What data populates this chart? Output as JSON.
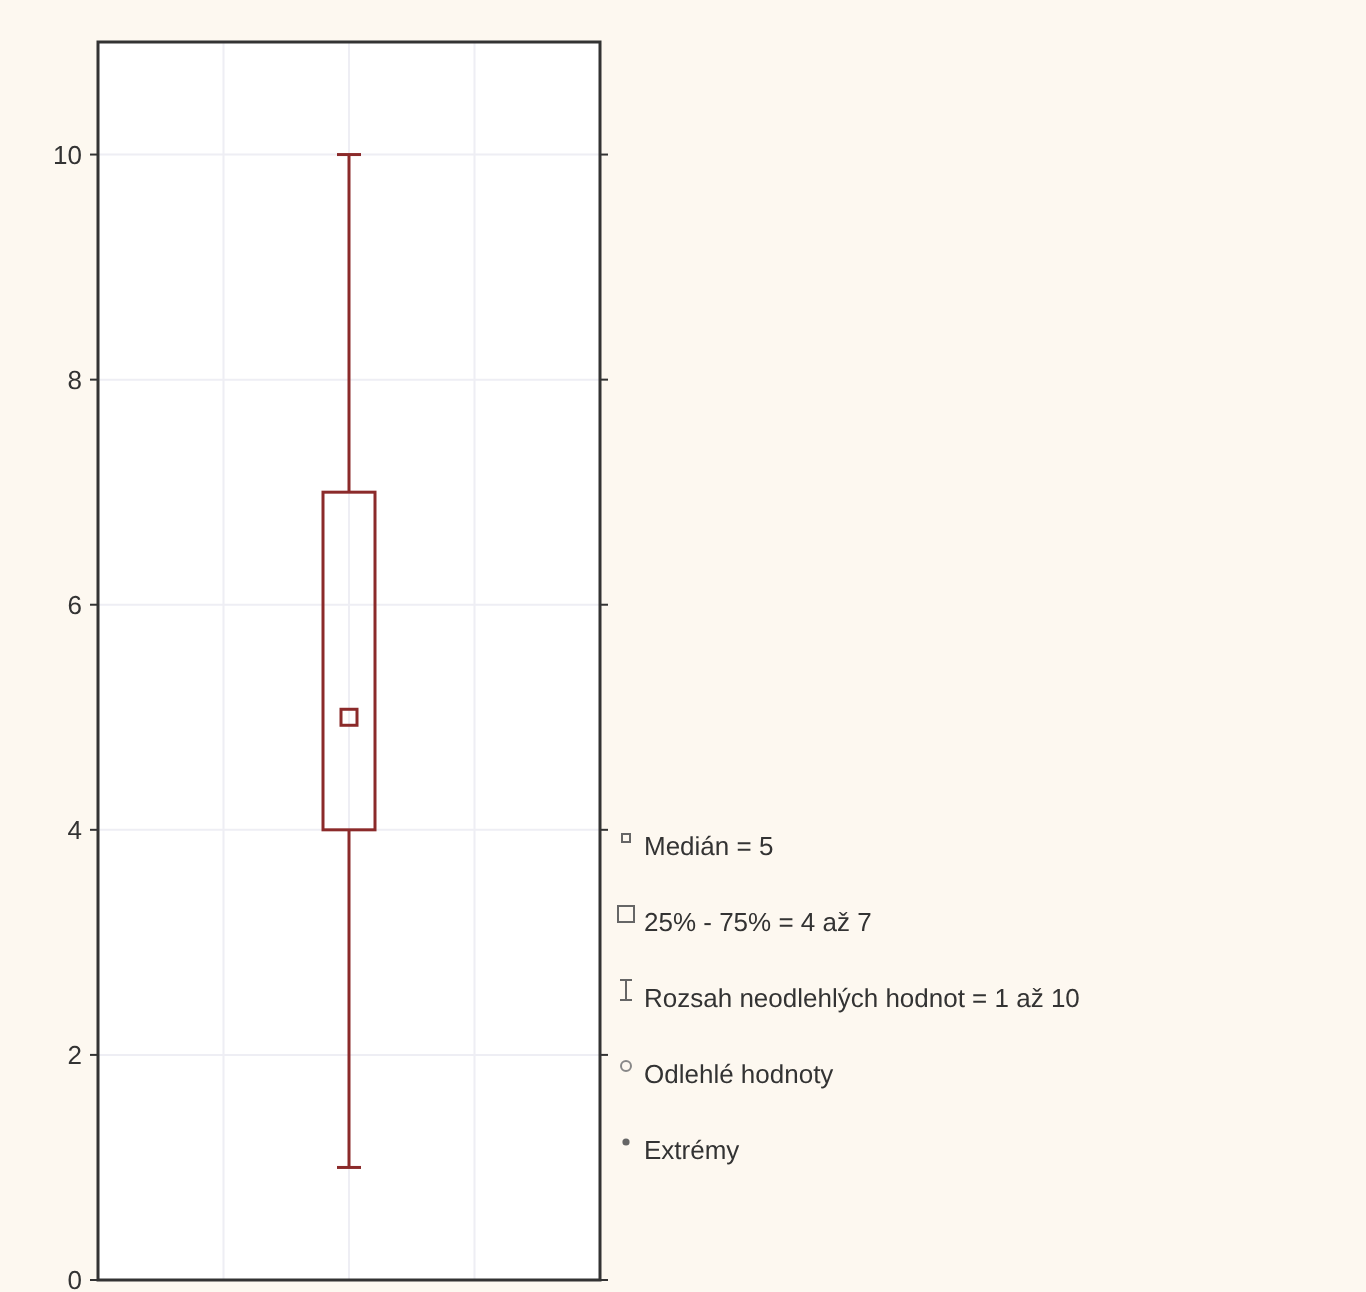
{
  "chart_data": {
    "type": "box",
    "categories": [
      null
    ],
    "series": [
      {
        "color": "#8b2a2a",
        "boxes": [
          {
            "low": 1,
            "q1": 4,
            "median": 5,
            "q3": 7,
            "high": 10
          }
        ]
      }
    ],
    "ylim": [
      0,
      11
    ],
    "yticks": [
      0,
      2,
      4,
      6,
      8,
      10
    ],
    "grid": true,
    "marker": "square",
    "annotations": [
      "Medián = 5",
      "25% - 75% = 4 až 7",
      "Rozsah neodlehlých hodnot = 1 až 10",
      "Odlehlé hodnoty",
      "Extrémy"
    ]
  }
}
